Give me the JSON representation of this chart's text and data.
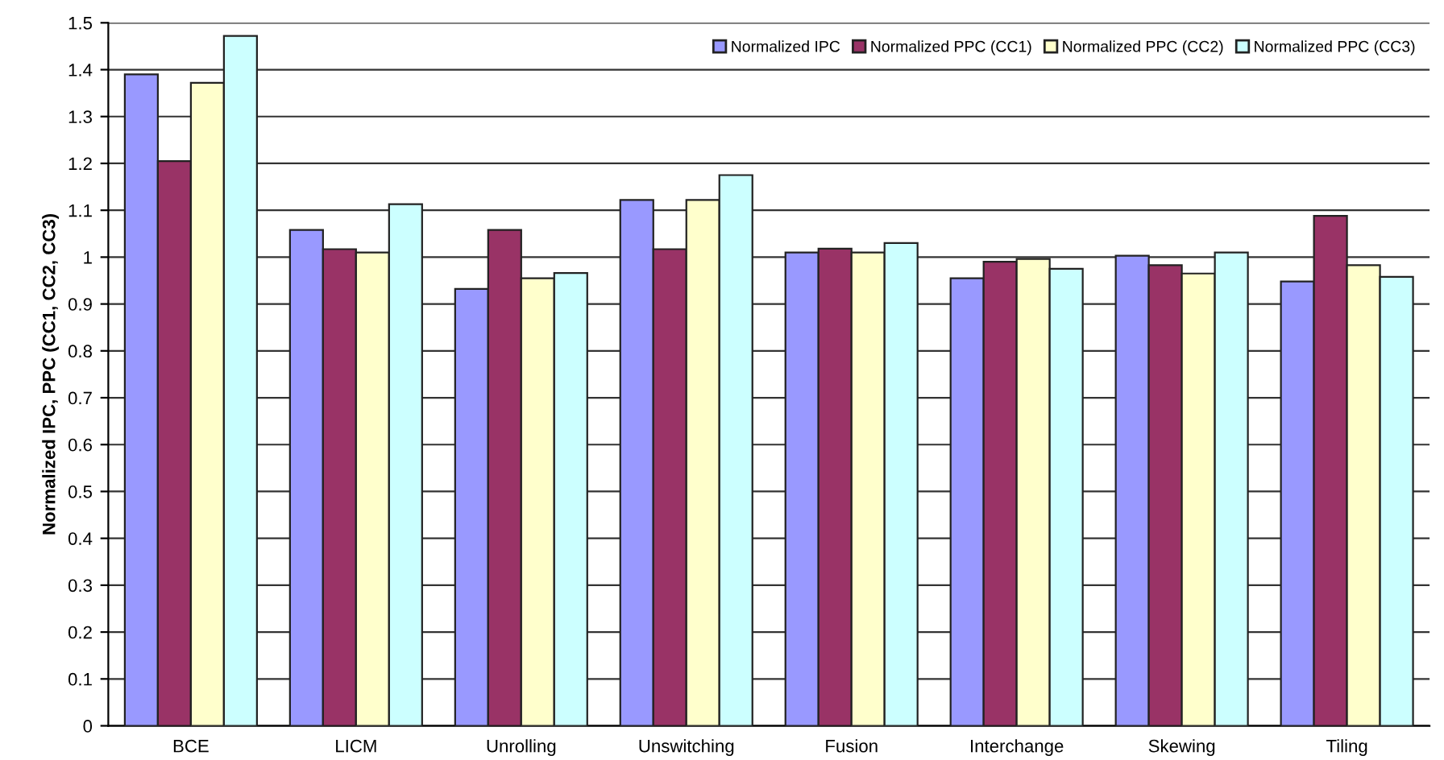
{
  "chart_data": {
    "type": "bar",
    "ylabel": "Normalized IPC, PPC (CC1, CC2, CC3)",
    "categories": [
      "BCE",
      "LICM",
      "Unrolling",
      "Unswitching",
      "Fusion",
      "Interchange",
      "Skewing",
      "Tiling"
    ],
    "series": [
      {
        "name": "Normalized IPC",
        "color": "#9999ff",
        "values": [
          1.39,
          1.058,
          0.932,
          1.122,
          1.01,
          0.955,
          1.003,
          0.948
        ]
      },
      {
        "name": "Normalized PPC (CC1)",
        "color": "#993366",
        "values": [
          1.205,
          1.017,
          1.058,
          1.017,
          1.018,
          0.99,
          0.983,
          1.088
        ]
      },
      {
        "name": "Normalized PPC (CC2)",
        "color": "#ffffcc",
        "values": [
          1.372,
          1.01,
          0.955,
          1.122,
          1.01,
          0.996,
          0.965,
          0.983
        ]
      },
      {
        "name": "Normalized PPC (CC3)",
        "color": "#ccffff",
        "values": [
          1.472,
          1.113,
          0.966,
          1.175,
          1.03,
          0.975,
          1.01,
          0.958
        ]
      }
    ],
    "ylim": [
      0,
      1.5
    ],
    "yticks": [
      0,
      0.1,
      0.2,
      0.3,
      0.4,
      0.5,
      0.6,
      0.7,
      0.8,
      0.9,
      1,
      1.1,
      1.2,
      1.3,
      1.4,
      1.5
    ],
    "grid": "y",
    "legend": "top right"
  }
}
